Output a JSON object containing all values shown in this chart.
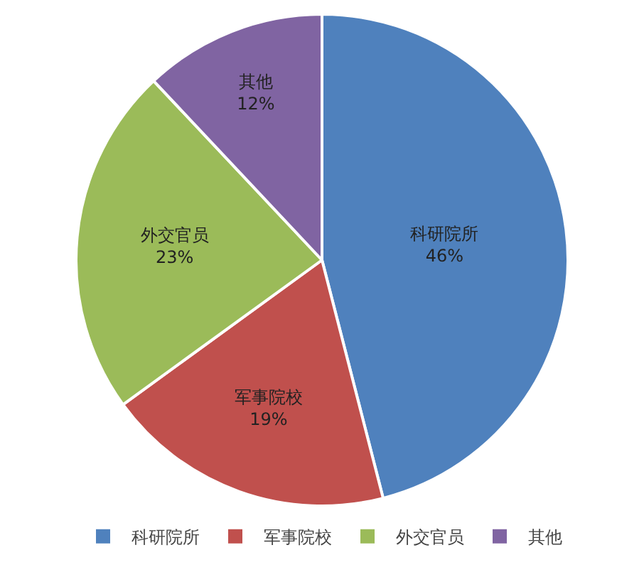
{
  "chart_data": {
    "type": "pie",
    "categories": [
      "科研院所",
      "军事院校",
      "外交官员",
      "其他"
    ],
    "values": [
      46,
      19,
      23,
      12
    ],
    "value_labels": [
      "46%",
      "19%",
      "23%",
      "12%"
    ],
    "colors": [
      "#4f81bd",
      "#c0504d",
      "#9bbb59",
      "#8064a2"
    ],
    "legend": "bottom"
  }
}
